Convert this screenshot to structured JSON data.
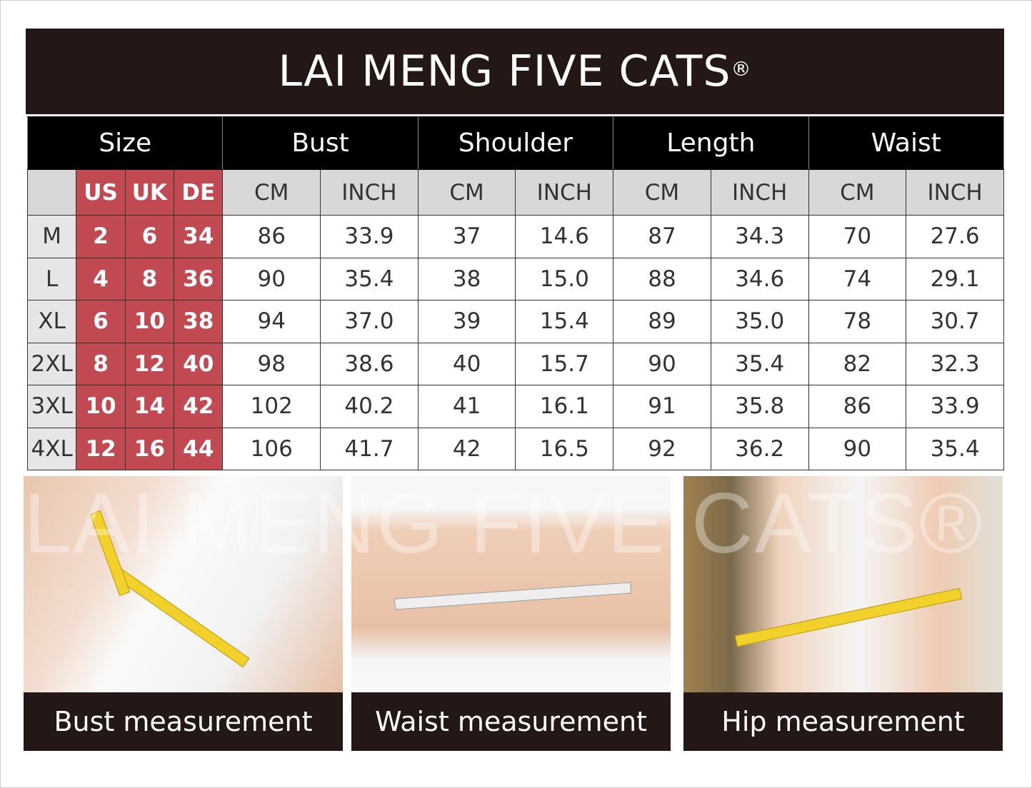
{
  "brand": {
    "name": "LAI MENG FIVE CATS",
    "mark": "®"
  },
  "table": {
    "groups": [
      "Size",
      "Bust",
      "Shoulder",
      "Length",
      "Waist"
    ],
    "size_subheaders": [
      "",
      "US",
      "UK",
      "DE"
    ],
    "unit_subheaders": [
      "CM",
      "INCH",
      "CM",
      "INCH",
      "CM",
      "INCH",
      "CM",
      "INCH"
    ],
    "rows": [
      [
        "M",
        "2",
        "6",
        "34",
        "86",
        "33.9",
        "37",
        "14.6",
        "87",
        "34.3",
        "70",
        "27.6"
      ],
      [
        "L",
        "4",
        "8",
        "36",
        "90",
        "35.4",
        "38",
        "15.0",
        "88",
        "34.6",
        "74",
        "29.1"
      ],
      [
        "XL",
        "6",
        "10",
        "38",
        "94",
        "37.0",
        "39",
        "15.4",
        "89",
        "35.0",
        "78",
        "30.7"
      ],
      [
        "2XL",
        "8",
        "12",
        "40",
        "98",
        "38.6",
        "40",
        "15.7",
        "90",
        "35.4",
        "82",
        "32.3"
      ],
      [
        "3XL",
        "10",
        "14",
        "42",
        "102",
        "40.2",
        "41",
        "16.1",
        "91",
        "35.8",
        "86",
        "33.9"
      ],
      [
        "4XL",
        "12",
        "16",
        "44",
        "106",
        "41.7",
        "42",
        "16.5",
        "92",
        "36.2",
        "90",
        "35.4"
      ]
    ]
  },
  "photos": [
    {
      "caption": "Bust measurement"
    },
    {
      "caption": "Waist measurement"
    },
    {
      "caption": "Hip measurement"
    }
  ],
  "watermark": "LAI MENG FIVE CATS®",
  "colors": {
    "title_bg": "#231815",
    "size_red": "#c14a52",
    "header_black": "#000000",
    "subheader_gray": "#d8d8d8"
  }
}
